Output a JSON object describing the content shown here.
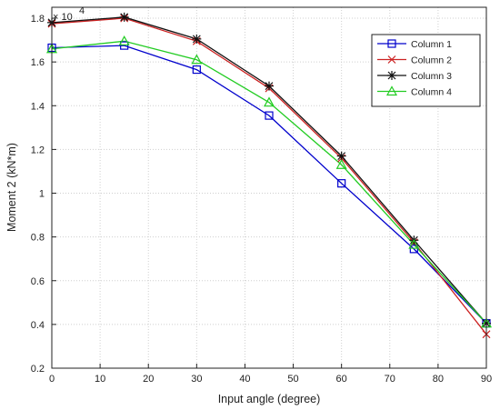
{
  "chart_data": {
    "type": "line",
    "title": "",
    "xlabel": "Input angle (degree)",
    "ylabel": "Moment 2 (kN*m)",
    "y_scale_label": "× 10",
    "y_scale_exponent": "4",
    "x": [
      0,
      15,
      30,
      45,
      60,
      75,
      90
    ],
    "xlim": [
      0,
      90
    ],
    "ylim": [
      0.2,
      1.85
    ],
    "x_ticks": [
      0,
      10,
      20,
      30,
      40,
      50,
      60,
      70,
      80,
      90
    ],
    "y_ticks": [
      0.2,
      0.4,
      0.6,
      0.8,
      1,
      1.2,
      1.4,
      1.6,
      1.8
    ],
    "x_tick_labels": [
      "0",
      "10",
      "20",
      "30",
      "40",
      "50",
      "60",
      "70",
      "80",
      "90"
    ],
    "y_tick_labels": [
      "0.2",
      "0.4",
      "0.6",
      "0.8",
      "1",
      "1.2",
      "1.4",
      "1.6",
      "1.8"
    ],
    "grid": true,
    "legend_position": "top-right",
    "series": [
      {
        "name": "Column 1",
        "color": "#0000cc",
        "marker": "square",
        "values": [
          1.665,
          1.675,
          1.565,
          1.355,
          1.045,
          0.745,
          0.405
        ]
      },
      {
        "name": "Column 2",
        "color": "#cc2222",
        "marker": "x",
        "values": [
          1.775,
          1.8,
          1.695,
          1.48,
          1.16,
          0.775,
          0.355
        ]
      },
      {
        "name": "Column 3",
        "color": "#111111",
        "marker": "asterisk",
        "values": [
          1.78,
          1.805,
          1.705,
          1.49,
          1.17,
          0.785,
          0.405
        ]
      },
      {
        "name": "Column 4",
        "color": "#22cc22",
        "marker": "triangle",
        "values": [
          1.66,
          1.695,
          1.61,
          1.415,
          1.13,
          0.765,
          0.405
        ]
      }
    ]
  }
}
